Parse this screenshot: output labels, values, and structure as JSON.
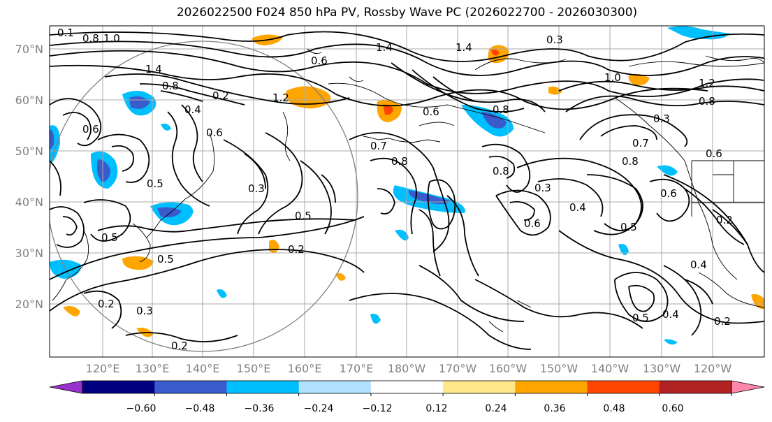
{
  "title": "2026022500 F024 850 hPa PV, Rossby Wave PC (2026022700 - 2026030300)",
  "lat_labels": [
    "70°N",
    "60°N",
    "50°N",
    "40°N",
    "30°N",
    "20°N"
  ],
  "lon_labels": [
    "120°E",
    "130°E",
    "140°E",
    "150°E",
    "160°E",
    "170°E",
    "180°W",
    "170°W",
    "160°W",
    "150°W",
    "140°W",
    "130°W",
    "120°W"
  ],
  "colorbar": {
    "ticks": [
      "−0.60",
      "−0.48",
      "−0.36",
      "−0.24",
      "−0.12",
      "0.12",
      "0.24",
      "0.36",
      "0.48",
      "0.60"
    ],
    "colors": [
      "#9932cc",
      "#000080",
      "#3a5bcc",
      "#00bfff",
      "#b0e2ff",
      "#ffffff",
      "#ffe88a",
      "#ffa500",
      "#ff4500",
      "#b22222",
      "#ff88aa"
    ]
  },
  "contour_labels": [
    "0.1",
    "0.8",
    "1.0",
    "1.4",
    "0.6",
    "1.4",
    "0.3",
    "1.4",
    "0.8",
    "0.2",
    "1.2",
    "0.4",
    "0.6",
    "1.2",
    "0.8",
    "0.6",
    "0.5",
    "0.3",
    "0.7",
    "0.8",
    "0.5",
    "0.8",
    "0.3",
    "0.4",
    "0.6",
    "0.5",
    "0.6",
    "0.5",
    "0.2",
    "0.5",
    "0.2",
    "0.3",
    "0.2",
    "0.4",
    "0.2",
    "0.5",
    "0.4",
    "0.2",
    "0.3",
    "0.6",
    "0.6",
    "0.8",
    "0.7",
    "0.8",
    "1.0"
  ]
}
